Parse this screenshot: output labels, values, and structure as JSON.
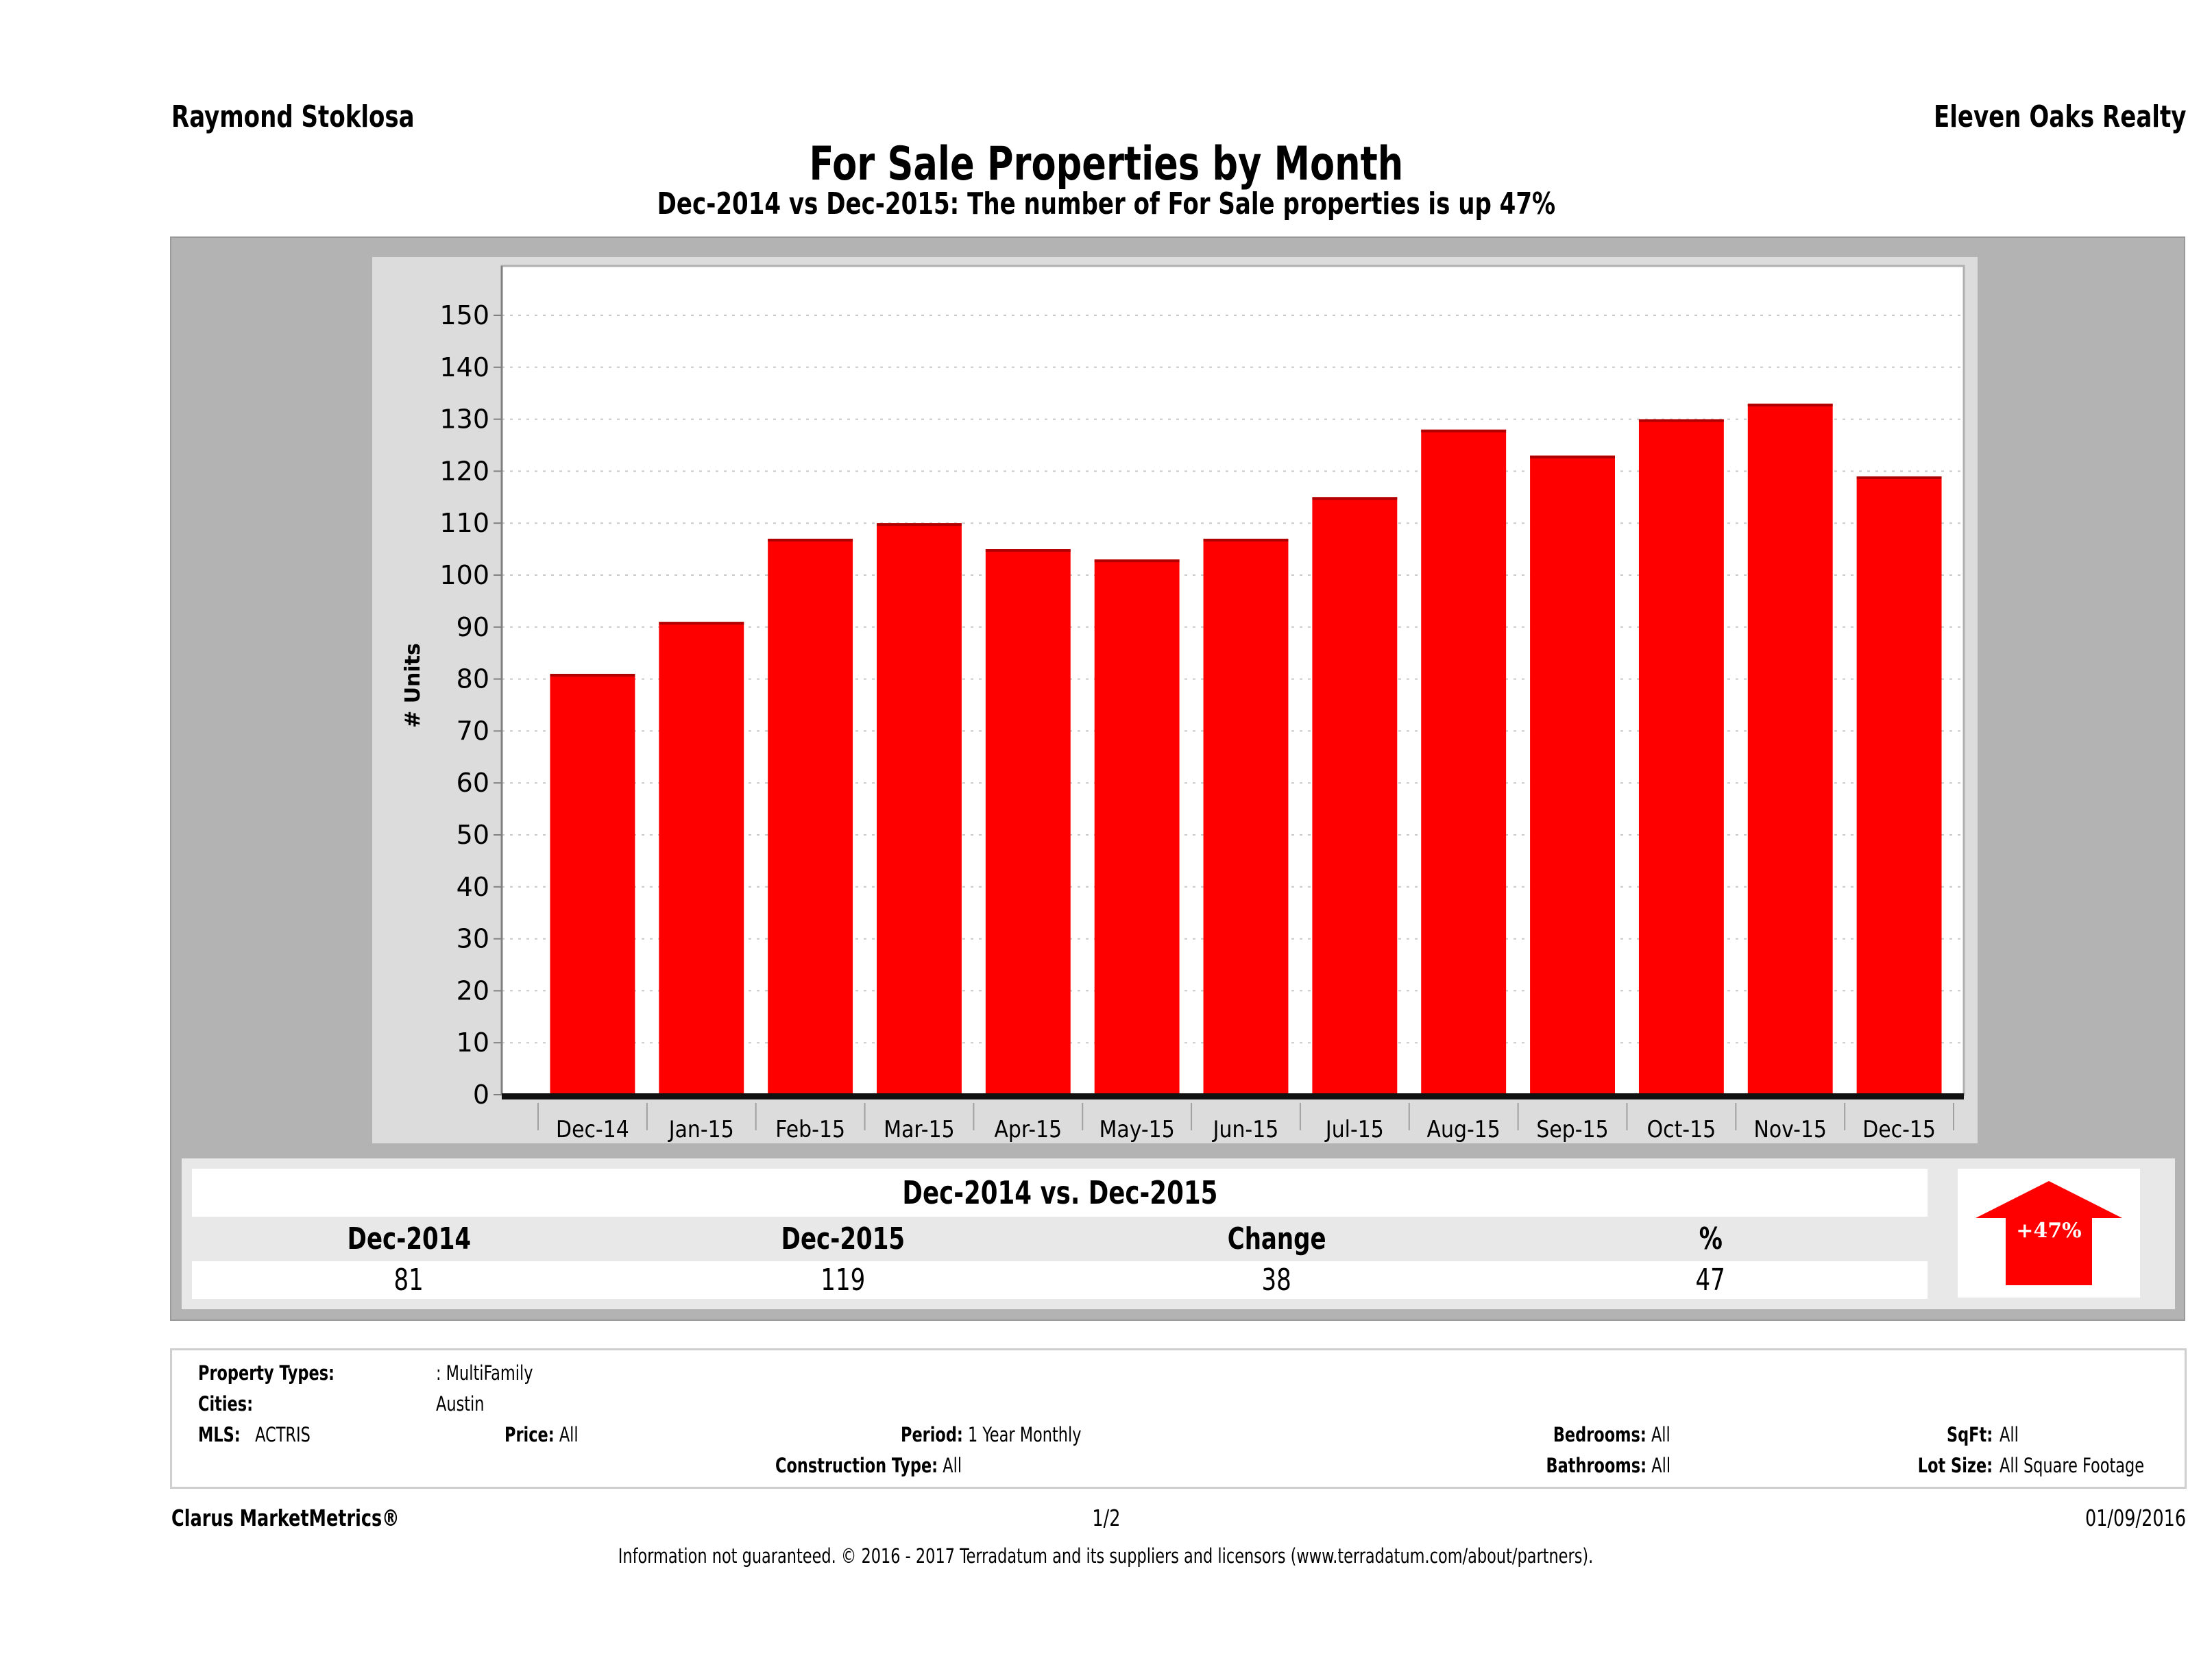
{
  "header": {
    "agent_name": "Raymond Stoklosa",
    "brokerage": "Eleven Oaks Realty",
    "title": "For Sale Properties by Month",
    "subtitle": "Dec-2014 vs Dec-2015: The number of For Sale  properties is up 47%"
  },
  "chart_data": {
    "type": "bar",
    "title": "For Sale Properties by Month",
    "xlabel": "",
    "ylabel": "# Units",
    "categories": [
      "Dec-14",
      "Jan-15",
      "Feb-15",
      "Mar-15",
      "Apr-15",
      "May-15",
      "Jun-15",
      "Jul-15",
      "Aug-15",
      "Sep-15",
      "Oct-15",
      "Nov-15",
      "Dec-15"
    ],
    "values": [
      81,
      91,
      107,
      110,
      105,
      103,
      107,
      115,
      128,
      123,
      130,
      133,
      119
    ],
    "ylim": [
      0,
      150
    ],
    "yticks": [
      0,
      10,
      20,
      30,
      40,
      50,
      60,
      70,
      80,
      90,
      100,
      110,
      120,
      130,
      140,
      150
    ],
    "grid": true,
    "bar_color": "#ff0000",
    "legend": "none"
  },
  "summary": {
    "title": "Dec-2014 vs. Dec-2015",
    "headers": [
      "Dec-2014",
      "Dec-2015",
      "Change",
      "%"
    ],
    "values": [
      "81",
      "119",
      "38",
      "47"
    ],
    "badge_label": "+47%",
    "badge_direction": "up-arrow-icon",
    "badge_color": "#ff0000"
  },
  "criteria": {
    "property_types_label": "Property Types:",
    "property_types_value": ": MultiFamily",
    "cities_label": "Cities:",
    "cities_value": "Austin",
    "mls_label": "MLS:",
    "mls_value": "ACTRIS",
    "price_label": "Price:",
    "price_value": "All",
    "period_label": "Period:",
    "period_value": "1 Year Monthly",
    "construction_label": "Construction Type:",
    "construction_value": "All",
    "bedrooms_label": "Bedrooms:",
    "bedrooms_value": "All",
    "bathrooms_label": "Bathrooms:",
    "bathrooms_value": "All",
    "sqft_label": "SqFt:",
    "sqft_value": "All",
    "lotsize_label": "Lot Size:",
    "lotsize_value": "All Square Footage"
  },
  "footer": {
    "product": "Clarus MarketMetrics®",
    "page": "1/2",
    "date": "01/09/2016",
    "disclaimer": "Information not guaranteed. © 2016 - 2017 Terradatum and its suppliers and licensors (www.terradatum.com/about/partners)."
  }
}
